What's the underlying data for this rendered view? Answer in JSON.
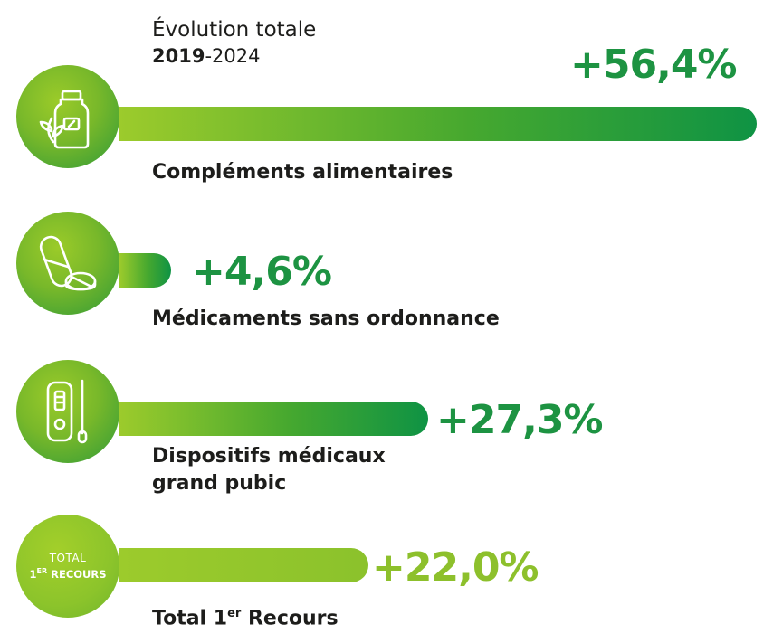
{
  "header": {
    "title": "Évolution totale",
    "period_bold": "2019",
    "period_rest": "-2024"
  },
  "chart_data": {
    "type": "bar",
    "orientation": "horizontal",
    "title": "Évolution totale 2019-2024",
    "categories": [
      "Compléments alimentaires",
      "Médicaments sans ordonnance",
      "Dispositifs médicaux grand pubic",
      "Total 1er Recours"
    ],
    "values": [
      56.4,
      4.6,
      27.3,
      22.0
    ],
    "value_labels": [
      "+56,4%",
      "+4,6%",
      "+27,3%",
      "+22,0%"
    ],
    "unit": "%",
    "grid": false,
    "legend": "none"
  },
  "rows": [
    {
      "label": "Compléments alimentaires",
      "value_label": "+56,4%",
      "icon": "supplement-bottle-icon"
    },
    {
      "label": "Médicaments sans ordonnance",
      "value_label": "+4,6%",
      "icon": "pills-icon"
    },
    {
      "label_line1": "Dispositifs médicaux",
      "label_line2": "grand pubic",
      "value_label": "+27,3%",
      "icon": "test-kit-icon"
    },
    {
      "label_main": "Total 1",
      "label_sup": "er",
      "label_rest": " Recours",
      "value_label": "+22,0%",
      "badge_line1": "TOTAL",
      "badge_line2_main": "1",
      "badge_line2_sup": "ER",
      "badge_line2_rest": " RECOURS"
    }
  ],
  "colors": {
    "dark_green": "#0f9344",
    "light_green": "#9ccb2c",
    "text": "#1d1d1b"
  }
}
